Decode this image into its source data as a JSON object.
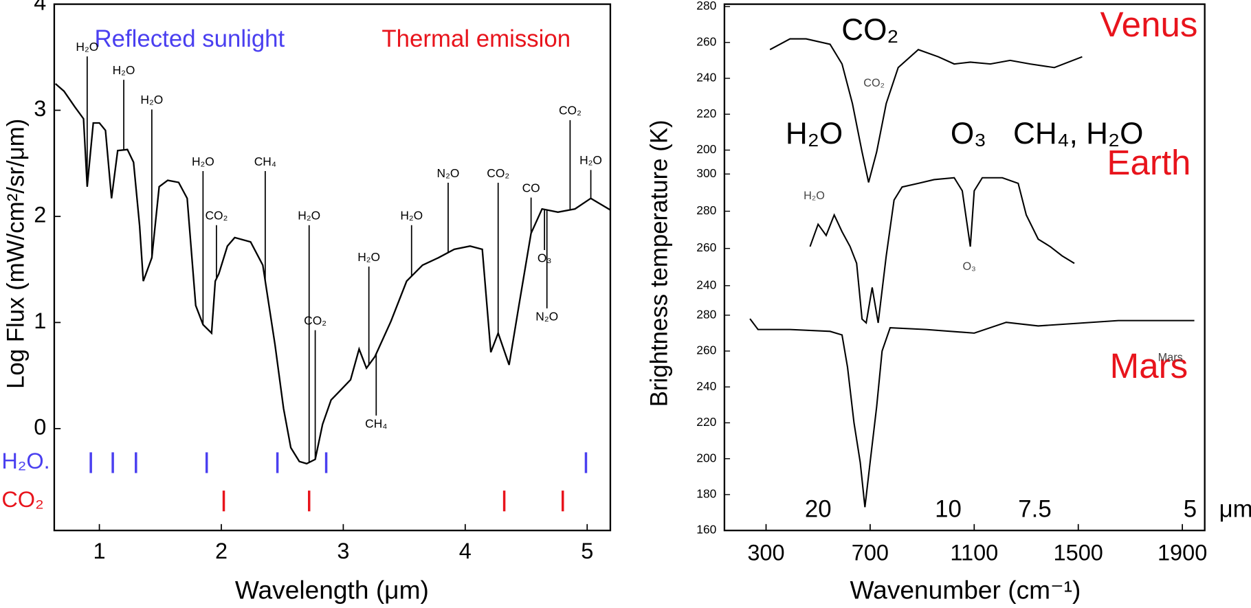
{
  "chart_data": [
    {
      "type": "line",
      "xlabel": "Wavelength (μm)",
      "ylabel": "Log Flux  (mW/cm²/sr/μm)",
      "xlim": [
        0.63,
        5.19
      ],
      "xticks": [
        1,
        2,
        3,
        4,
        5
      ],
      "ylim": [
        -0.96,
        4
      ],
      "yticks": [
        0,
        1,
        2,
        3,
        4
      ],
      "color": "#000000",
      "x": [
        0.64,
        0.71,
        0.8,
        0.87,
        0.9,
        0.95,
        1.0,
        1.05,
        1.1,
        1.15,
        1.23,
        1.28,
        1.33,
        1.36,
        1.43,
        1.49,
        1.56,
        1.65,
        1.72,
        1.79,
        1.85,
        1.92,
        1.95,
        1.98,
        2.05,
        2.11,
        2.24,
        2.34,
        2.44,
        2.51,
        2.57,
        2.64,
        2.7,
        2.77,
        2.83,
        2.9,
        2.96,
        3.06,
        3.13,
        3.19,
        3.26,
        3.39,
        3.52,
        3.65,
        3.78,
        3.91,
        4.04,
        4.14,
        4.21,
        4.27,
        4.36,
        4.44,
        4.54,
        4.63,
        4.76,
        4.9,
        5.03,
        5.19
      ],
      "values": [
        3.25,
        3.18,
        3.03,
        2.92,
        2.28,
        2.88,
        2.88,
        2.81,
        2.17,
        2.62,
        2.63,
        2.51,
        1.91,
        1.39,
        1.61,
        2.28,
        2.34,
        2.32,
        2.17,
        1.16,
        0.98,
        0.9,
        1.39,
        1.46,
        1.72,
        1.8,
        1.76,
        1.54,
        0.79,
        0.19,
        -0.18,
        -0.31,
        -0.33,
        -0.29,
        0.04,
        0.27,
        0.34,
        0.46,
        0.75,
        0.57,
        0.68,
        1.01,
        1.39,
        1.54,
        1.61,
        1.69,
        1.72,
        1.69,
        0.72,
        0.9,
        0.6,
        1.16,
        1.84,
        2.07,
        2.04,
        2.07,
        2.17,
        2.06
      ],
      "headings": [
        {
          "text": "Reflected sunlight",
          "color": "#4a3ff0",
          "x": 1.74,
          "y": 3.66
        },
        {
          "text": "Thermal emission",
          "color": "#e8141c",
          "x": 4.09,
          "y": 3.66
        }
      ],
      "labels": [
        {
          "text": "H₂O",
          "x": 0.9,
          "y": 3.59
        },
        {
          "text": "H₂O",
          "x": 1.2,
          "y": 3.37
        },
        {
          "text": "H₂O",
          "x": 1.43,
          "y": 3.09
        },
        {
          "text": "H₂O",
          "x": 1.85,
          "y": 2.51
        },
        {
          "text": "CO₂",
          "x": 1.96,
          "y": 2.0
        },
        {
          "text": "CH₄",
          "x": 2.36,
          "y": 2.51
        },
        {
          "text": "H₂O",
          "x": 2.72,
          "y": 2.0
        },
        {
          "text": "CO₂",
          "x": 2.77,
          "y": 1.01
        },
        {
          "text": "H₂O",
          "x": 3.21,
          "y": 1.61
        },
        {
          "text": "CH₄",
          "x": 3.27,
          "y": 0.04
        },
        {
          "text": "H₂O",
          "x": 3.56,
          "y": 2.0
        },
        {
          "text": "N₂O",
          "x": 3.86,
          "y": 2.4
        },
        {
          "text": "CO₂",
          "x": 4.27,
          "y": 2.4
        },
        {
          "text": "CO",
          "x": 4.54,
          "y": 2.26
        },
        {
          "text": "O₃",
          "x": 4.65,
          "y": 1.6
        },
        {
          "text": "N₂O",
          "x": 4.67,
          "y": 1.05
        },
        {
          "text": "CO₂",
          "x": 4.86,
          "y": 2.99
        },
        {
          "text": "H₂O",
          "x": 5.03,
          "y": 2.52
        }
      ],
      "bands": [
        {
          "name": "H₂O.",
          "color": "#4a3ff0",
          "x": [
            0.93,
            1.11,
            1.3,
            1.88,
            2.46,
            2.86,
            4.99
          ]
        },
        {
          "name": "CO₂",
          "color": "#e8141c",
          "x": [
            2.02,
            2.72,
            4.32,
            4.8
          ]
        }
      ]
    },
    {
      "type": "line",
      "xlabel": "Wavenumber (cm⁻¹)",
      "ylabel": "Brightness temperature (K)",
      "xlim": [
        140,
        1986
      ],
      "xticks": [
        300,
        700,
        1100,
        1500,
        1900
      ],
      "top_ticks": [
        {
          "value": 500,
          "label": "20"
        },
        {
          "value": 1000,
          "label": "10"
        },
        {
          "value": 1333,
          "label": "7.5"
        },
        {
          "value": 1930,
          "label": "5"
        }
      ],
      "top_unit": "μm",
      "panels": [
        {
          "name": "Venus",
          "name_color": "#e8141c",
          "ylim": [
            200,
            280
          ],
          "yticks": [
            200,
            220,
            240,
            260,
            280
          ],
          "color": "#000000",
          "x": [
            315,
            392,
            454,
            546,
            592,
            632,
            669,
            694,
            725,
            762,
            808,
            885,
            962,
            1023,
            1085,
            1162,
            1238,
            1315,
            1408,
            1515
          ],
          "values": [
            256,
            262,
            262,
            259,
            248,
            226,
            199,
            182,
            199,
            226,
            246,
            256,
            252,
            248,
            249,
            248,
            250,
            248,
            246,
            252
          ],
          "annotations": [
            {
              "text": "CO₂",
              "x": 700,
              "y": 266,
              "size": "large"
            },
            {
              "text": "CO₂",
              "x": 715,
              "y": 237,
              "size": "small"
            },
            {
              "text": "H₂O",
              "x": 485,
              "y": 208,
              "size": "large"
            },
            {
              "text": "O₃",
              "x": 1078,
              "y": 208,
              "size": "large"
            },
            {
              "text": "CH₄, H₂O",
              "x": 1500,
              "y": 208,
              "size": "large"
            }
          ]
        },
        {
          "name": "Earth",
          "name_color": "#e8141c",
          "ylim": [
            240,
            300
          ],
          "yticks": [
            240,
            260,
            280,
            300
          ],
          "color": "#000000",
          "x": [
            469,
            500,
            531,
            562,
            592,
            623,
            648,
            669,
            685,
            708,
            731,
            762,
            792,
            823,
            885,
            946,
            1023,
            1054,
            1085,
            1100,
            1131,
            1208,
            1269,
            1300,
            1346,
            1392,
            1438,
            1485
          ],
          "values": [
            261,
            273,
            267,
            278,
            269,
            261,
            252,
            222,
            220,
            239,
            220,
            256,
            286,
            293,
            295,
            297,
            298,
            291,
            261,
            291,
            298,
            298,
            295,
            278,
            265,
            261,
            256,
            252
          ],
          "annotations": [
            {
              "text": "H₂O",
              "x": 485,
              "y": 288,
              "size": "small"
            },
            {
              "text": "O₃",
              "x": 1081,
              "y": 250,
              "size": "small"
            }
          ]
        },
        {
          "name": "Mars",
          "name_color": "#e8141c",
          "ylim": [
            160,
            280
          ],
          "yticks": [
            160,
            180,
            200,
            220,
            240,
            260,
            280
          ],
          "color": "#000000",
          "x": [
            238,
            269,
            392,
            546,
            592,
            613,
            638,
            662,
            680,
            700,
            725,
            746,
            777,
            915,
            1100,
            1223,
            1346,
            1654,
            1946
          ],
          "values": [
            278,
            272,
            272,
            271,
            269,
            251,
            220,
            198,
            173,
            198,
            229,
            260,
            273,
            272,
            270,
            276,
            274,
            277,
            277
          ],
          "annotations": [
            {
              "text": "Mars",
              "x": 1854,
              "y": 256,
              "size": "small"
            }
          ]
        }
      ]
    }
  ]
}
